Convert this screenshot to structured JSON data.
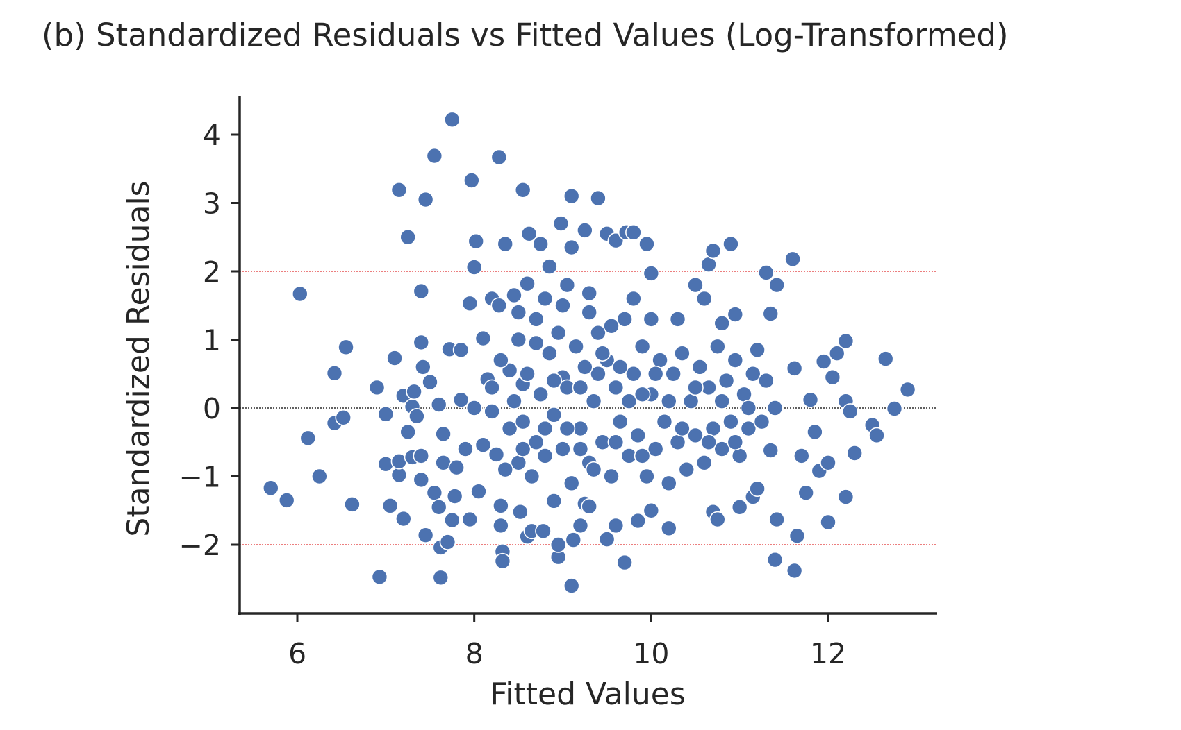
{
  "chart_data": {
    "type": "scatter",
    "title": "(b) Standardized Residuals vs Fitted Values (Log-Transformed)",
    "xlabel": "Fitted Values",
    "ylabel": "Standardized Residuals",
    "xlim": [
      5.35,
      13.2
    ],
    "ylim": [
      -2.9,
      4.6
    ],
    "xticks": [
      6,
      8,
      10,
      12
    ],
    "xtick_labels": [
      "6",
      "8",
      "10",
      "12"
    ],
    "yticks": [
      -2,
      -1,
      0,
      1,
      2,
      3,
      4
    ],
    "ytick_labels": [
      "−2",
      "−1",
      "0",
      "1",
      "2",
      "3",
      "4"
    ],
    "grid": false,
    "reference_lines": [
      {
        "y": 0,
        "color": "#000000",
        "style": "dotted"
      },
      {
        "y": 2,
        "color": "#e03030",
        "style": "dotted"
      },
      {
        "y": -2,
        "color": "#e03030",
        "style": "dotted"
      }
    ],
    "marker_color": "#4c72b0",
    "points": [
      [
        5.7,
        -1.17
      ],
      [
        5.88,
        -1.35
      ],
      [
        6.03,
        1.67
      ],
      [
        6.12,
        -0.44
      ],
      [
        6.25,
        -1.0
      ],
      [
        6.42,
        0.51
      ],
      [
        6.42,
        -0.22
      ],
      [
        6.52,
        -0.14
      ],
      [
        6.55,
        0.89
      ],
      [
        6.62,
        -1.41
      ],
      [
        6.9,
        0.3
      ],
      [
        6.93,
        -2.47
      ],
      [
        7.0,
        -0.09
      ],
      [
        7.0,
        -0.82
      ],
      [
        7.05,
        -1.43
      ],
      [
        7.1,
        0.73
      ],
      [
        7.15,
        -0.98
      ],
      [
        7.15,
        -0.78
      ],
      [
        7.15,
        3.19
      ],
      [
        7.2,
        0.18
      ],
      [
        7.2,
        -1.62
      ],
      [
        7.25,
        2.5
      ],
      [
        7.25,
        -0.35
      ],
      [
        7.3,
        -0.72
      ],
      [
        7.3,
        0.02
      ],
      [
        7.32,
        0.24
      ],
      [
        7.35,
        -0.12
      ],
      [
        7.4,
        1.71
      ],
      [
        7.4,
        0.96
      ],
      [
        7.4,
        -1.05
      ],
      [
        7.4,
        -0.7
      ],
      [
        7.42,
        0.6
      ],
      [
        7.45,
        3.05
      ],
      [
        7.45,
        -1.86
      ],
      [
        7.5,
        0.38
      ],
      [
        7.55,
        3.69
      ],
      [
        7.55,
        -1.24
      ],
      [
        7.6,
        0.05
      ],
      [
        7.6,
        -1.45
      ],
      [
        7.62,
        -2.04
      ],
      [
        7.62,
        -2.48
      ],
      [
        7.65,
        -0.8
      ],
      [
        7.65,
        -0.38
      ],
      [
        7.7,
        -1.96
      ],
      [
        7.72,
        0.86
      ],
      [
        7.75,
        4.22
      ],
      [
        7.75,
        -1.64
      ],
      [
        7.78,
        -1.29
      ],
      [
        7.8,
        -0.87
      ],
      [
        7.85,
        0.85
      ],
      [
        7.85,
        0.12
      ],
      [
        7.9,
        -0.6
      ],
      [
        7.95,
        1.53
      ],
      [
        7.95,
        -1.63
      ],
      [
        7.97,
        3.33
      ],
      [
        8.0,
        2.06
      ],
      [
        8.0,
        0.0
      ],
      [
        8.02,
        2.44
      ],
      [
        8.05,
        -1.22
      ],
      [
        8.1,
        1.02
      ],
      [
        8.1,
        -0.54
      ],
      [
        8.15,
        0.42
      ],
      [
        8.2,
        1.6
      ],
      [
        8.2,
        -0.05
      ],
      [
        8.25,
        -0.68
      ],
      [
        8.28,
        3.67
      ],
      [
        8.28,
        1.5
      ],
      [
        8.3,
        -1.43
      ],
      [
        8.3,
        -1.72
      ],
      [
        8.32,
        -2.1
      ],
      [
        8.32,
        -2.24
      ],
      [
        8.35,
        2.4
      ],
      [
        8.4,
        0.55
      ],
      [
        8.45,
        1.65
      ],
      [
        8.5,
        -0.8
      ],
      [
        8.52,
        -1.52
      ],
      [
        8.55,
        3.19
      ],
      [
        8.55,
        0.35
      ],
      [
        8.6,
        1.82
      ],
      [
        8.6,
        -1.88
      ],
      [
        8.62,
        2.55
      ],
      [
        8.65,
        -1.8
      ],
      [
        8.7,
        0.95
      ],
      [
        8.75,
        2.4
      ],
      [
        8.78,
        -1.8
      ],
      [
        8.8,
        -0.3
      ],
      [
        8.85,
        2.07
      ],
      [
        8.9,
        -1.36
      ],
      [
        8.95,
        -2.18
      ],
      [
        8.95,
        -2.0
      ],
      [
        8.98,
        2.7
      ],
      [
        9.0,
        0.45
      ],
      [
        9.05,
        1.8
      ],
      [
        9.1,
        3.1
      ],
      [
        9.1,
        -2.6
      ],
      [
        9.1,
        2.35
      ],
      [
        9.12,
        -1.93
      ],
      [
        9.2,
        -1.72
      ],
      [
        9.25,
        2.6
      ],
      [
        9.25,
        -1.4
      ],
      [
        9.3,
        -1.44
      ],
      [
        9.3,
        1.68
      ],
      [
        9.4,
        3.07
      ],
      [
        9.4,
        0.5
      ],
      [
        9.5,
        2.55
      ],
      [
        9.5,
        -1.92
      ],
      [
        9.6,
        2.45
      ],
      [
        9.6,
        -1.72
      ],
      [
        9.7,
        -2.26
      ],
      [
        9.72,
        2.57
      ],
      [
        9.8,
        2.57
      ],
      [
        9.85,
        -1.65
      ],
      [
        9.95,
        2.4
      ],
      [
        10.0,
        1.97
      ],
      [
        10.0,
        -1.5
      ],
      [
        10.2,
        -1.76
      ],
      [
        10.3,
        1.3
      ],
      [
        10.5,
        1.8
      ],
      [
        10.6,
        1.6
      ],
      [
        10.65,
        2.1
      ],
      [
        10.7,
        2.3
      ],
      [
        10.7,
        -1.52
      ],
      [
        10.75,
        -1.63
      ],
      [
        10.8,
        1.24
      ],
      [
        10.9,
        2.4
      ],
      [
        10.95,
        1.37
      ],
      [
        11.0,
        -1.45
      ],
      [
        11.15,
        -1.3
      ],
      [
        11.2,
        0.85
      ],
      [
        11.2,
        -1.18
      ],
      [
        11.3,
        1.98
      ],
      [
        11.35,
        -0.62
      ],
      [
        11.35,
        1.38
      ],
      [
        11.4,
        -2.22
      ],
      [
        11.42,
        1.8
      ],
      [
        11.42,
        -1.63
      ],
      [
        11.6,
        2.18
      ],
      [
        11.62,
        -2.38
      ],
      [
        11.62,
        0.58
      ],
      [
        11.65,
        -1.87
      ],
      [
        11.7,
        -0.7
      ],
      [
        11.75,
        -1.24
      ],
      [
        11.8,
        0.12
      ],
      [
        11.85,
        -0.35
      ],
      [
        11.9,
        -0.92
      ],
      [
        12.0,
        -1.67
      ],
      [
        12.0,
        -0.8
      ],
      [
        11.95,
        0.68
      ],
      [
        12.05,
        0.45
      ],
      [
        12.1,
        0.8
      ],
      [
        12.2,
        0.98
      ],
      [
        12.2,
        0.1
      ],
      [
        12.2,
        -1.3
      ],
      [
        12.25,
        -0.05
      ],
      [
        12.3,
        -0.66
      ],
      [
        12.5,
        -0.25
      ],
      [
        12.55,
        -0.4
      ],
      [
        12.65,
        0.72
      ],
      [
        12.75,
        -0.01
      ],
      [
        12.9,
        0.27
      ],
      [
        8.3,
        0.7
      ],
      [
        8.4,
        -0.3
      ],
      [
        8.45,
        0.1
      ],
      [
        8.5,
        1.0
      ],
      [
        8.55,
        -0.6
      ],
      [
        8.6,
        0.5
      ],
      [
        8.65,
        -1.0
      ],
      [
        8.7,
        1.3
      ],
      [
        8.75,
        0.2
      ],
      [
        8.8,
        -0.7
      ],
      [
        8.85,
        0.8
      ],
      [
        8.9,
        -0.1
      ],
      [
        8.95,
        1.1
      ],
      [
        9.0,
        -0.6
      ],
      [
        9.05,
        0.3
      ],
      [
        9.1,
        -1.1
      ],
      [
        9.15,
        0.9
      ],
      [
        9.2,
        -0.3
      ],
      [
        9.25,
        0.6
      ],
      [
        9.3,
        -0.8
      ],
      [
        9.35,
        0.1
      ],
      [
        9.4,
        1.1
      ],
      [
        9.45,
        -0.5
      ],
      [
        9.5,
        0.7
      ],
      [
        9.55,
        -1.0
      ],
      [
        9.6,
        0.3
      ],
      [
        9.65,
        -0.2
      ],
      [
        9.7,
        1.3
      ],
      [
        9.75,
        -0.7
      ],
      [
        9.8,
        0.5
      ],
      [
        9.85,
        -0.4
      ],
      [
        9.9,
        0.9
      ],
      [
        9.95,
        -1.0
      ],
      [
        10.0,
        0.2
      ],
      [
        10.05,
        -0.6
      ],
      [
        10.1,
        0.7
      ],
      [
        10.15,
        -0.2
      ],
      [
        10.2,
        -1.1
      ],
      [
        10.25,
        0.5
      ],
      [
        10.3,
        -0.5
      ],
      [
        10.35,
        0.8
      ],
      [
        10.4,
        -0.9
      ],
      [
        10.45,
        0.1
      ],
      [
        10.5,
        -0.4
      ],
      [
        10.55,
        0.6
      ],
      [
        10.6,
        -0.8
      ],
      [
        10.65,
        0.3
      ],
      [
        10.7,
        -0.3
      ],
      [
        10.75,
        0.9
      ],
      [
        10.8,
        -0.6
      ],
      [
        10.85,
        0.4
      ],
      [
        10.9,
        -0.2
      ],
      [
        10.95,
        0.7
      ],
      [
        11.0,
        -0.7
      ],
      [
        11.05,
        0.2
      ],
      [
        11.1,
        -0.3
      ],
      [
        11.15,
        0.5
      ],
      [
        11.25,
        -0.2
      ],
      [
        11.3,
        0.4
      ],
      [
        11.4,
        0.0
      ],
      [
        8.2,
        0.3
      ],
      [
        8.35,
        -0.9
      ],
      [
        8.55,
        -0.2
      ],
      [
        8.7,
        -0.5
      ],
      [
        8.9,
        0.4
      ],
      [
        9.05,
        -0.3
      ],
      [
        9.2,
        0.3
      ],
      [
        9.35,
        -0.9
      ],
      [
        9.45,
        0.8
      ],
      [
        9.6,
        -0.5
      ],
      [
        9.75,
        0.1
      ],
      [
        9.9,
        -0.7
      ],
      [
        10.05,
        0.5
      ],
      [
        10.2,
        0.1
      ],
      [
        10.35,
        -0.3
      ],
      [
        10.5,
        0.3
      ],
      [
        10.65,
        -0.5
      ],
      [
        10.8,
        0.1
      ],
      [
        10.95,
        -0.5
      ],
      [
        11.1,
        0.0
      ],
      [
        9.0,
        1.5
      ],
      [
        9.3,
        1.4
      ],
      [
        9.55,
        1.2
      ],
      [
        9.8,
        1.6
      ],
      [
        10.0,
        1.3
      ],
      [
        8.8,
        1.6
      ],
      [
        8.5,
        1.4
      ],
      [
        9.2,
        -0.6
      ],
      [
        9.65,
        0.6
      ],
      [
        9.9,
        0.2
      ]
    ]
  }
}
